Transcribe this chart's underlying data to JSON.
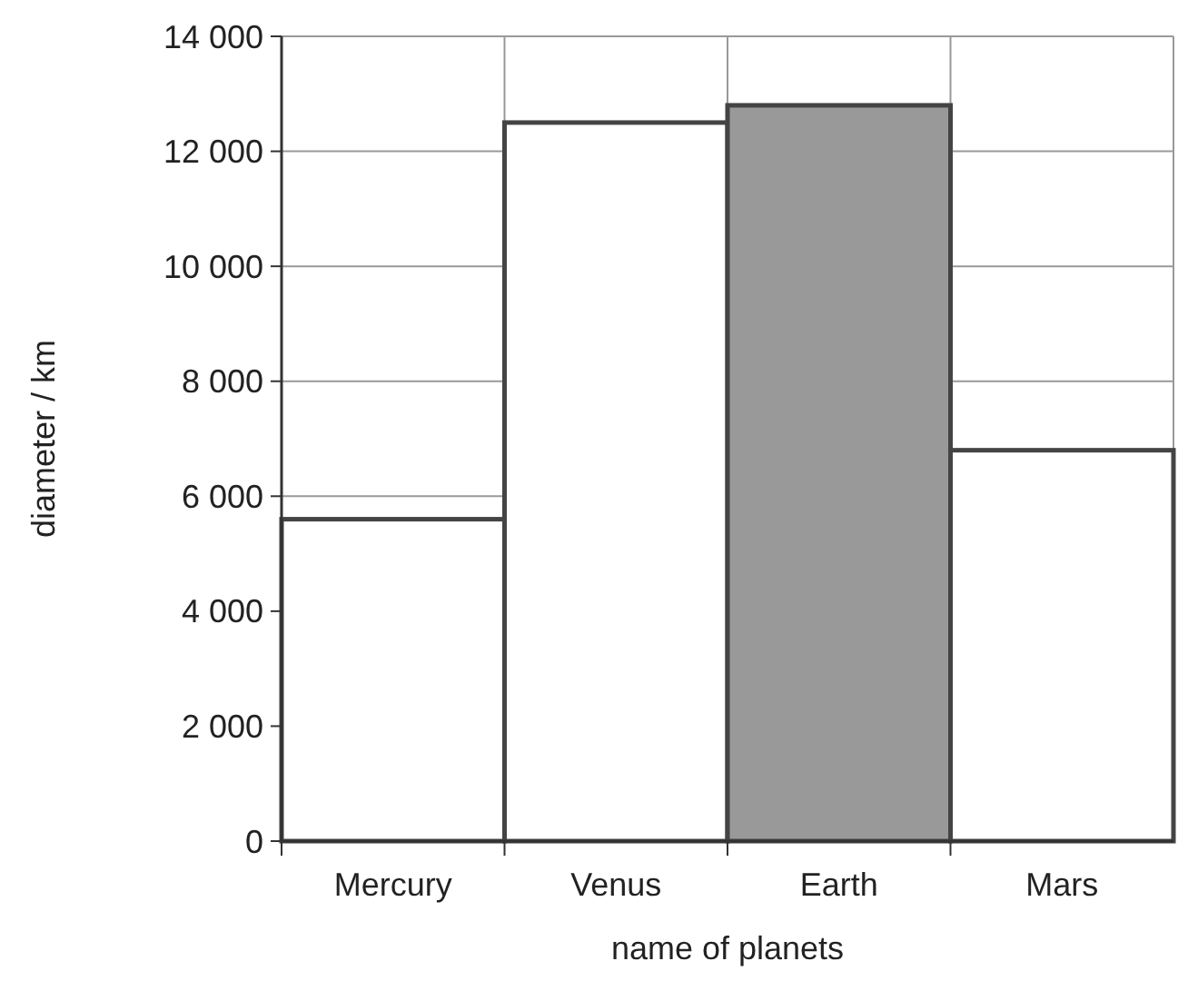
{
  "chart_data": {
    "type": "bar",
    "xlabel": "name of planets",
    "ylabel": "diameter / km",
    "categories": [
      "Mercury",
      "Venus",
      "Earth",
      "Mars"
    ],
    "values": [
      5600,
      12500,
      12800,
      6800
    ],
    "colors": [
      "#ffffff",
      "#ffffff",
      "#999999",
      "#ffffff"
    ],
    "ylim": [
      0,
      14000
    ],
    "yticks": [
      0,
      {
        "value": 2000,
        "label": "2 000"
      },
      {
        "value": 4000,
        "label": "4 000"
      },
      {
        "value": 6000,
        "label": "6 000"
      },
      {
        "value": 8000,
        "label": "8 000"
      },
      {
        "value": 10000,
        "label": "10 000"
      },
      {
        "value": 12000,
        "label": "12 000"
      },
      {
        "value": 14000,
        "label": "14 000"
      }
    ],
    "grid": true
  }
}
